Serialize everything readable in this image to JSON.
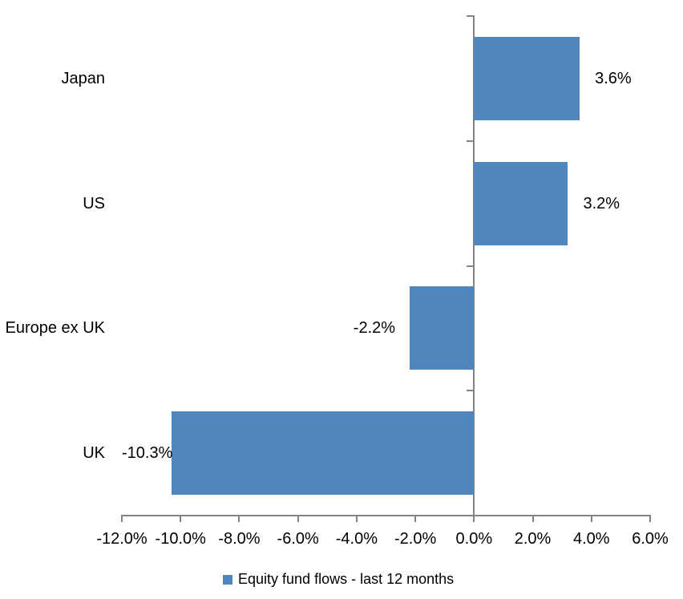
{
  "chart_data": {
    "type": "bar",
    "orientation": "horizontal",
    "title": "",
    "xlabel": "",
    "ylabel": "",
    "categories": [
      "Japan",
      "US",
      "Europe ex UK",
      "UK"
    ],
    "series": [
      {
        "name": "Equity fund flows - last 12 months",
        "values": [
          3.6,
          3.2,
          -2.2,
          -10.3
        ],
        "data_labels": [
          "3.6%",
          "3.2%",
          "-2.2%",
          "-10.3%"
        ]
      }
    ],
    "xlim": [
      -12,
      6
    ],
    "x_tick_step": 2,
    "x_tick_values": [
      -12,
      -10,
      -8,
      -6,
      -4,
      -2,
      0,
      2,
      4,
      6
    ],
    "x_tick_labels": [
      "-12.0%",
      "-10.0%",
      "-8.0%",
      "-6.0%",
      "-4.0%",
      "-2.0%",
      "0.0%",
      "2.0%",
      "4.0%",
      "6.0%"
    ],
    "grid": false,
    "legend_position": "bottom-center",
    "colors": {
      "bar": "#4e86bd",
      "axis": "#828282",
      "text": "#000000",
      "background": "#ffffff"
    }
  },
  "legend": {
    "items": [
      {
        "label": "Equity fund flows - last 12 months",
        "swatch_color": "#4e86bd"
      }
    ]
  }
}
